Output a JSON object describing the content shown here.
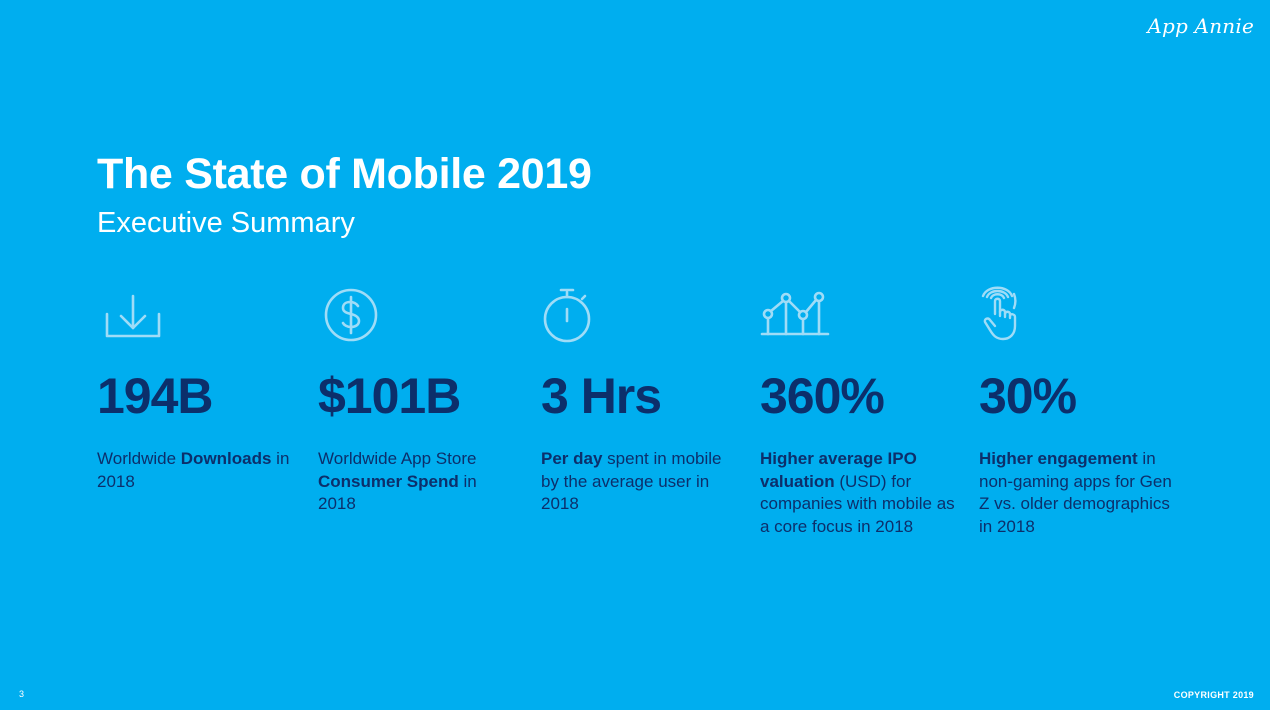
{
  "brand": {
    "logo_text": "App Annie"
  },
  "header": {
    "title": "The State of Mobile 2019",
    "subtitle": "Executive Summary"
  },
  "stats": [
    {
      "icon": "download-icon",
      "value": "194B",
      "desc_parts": [
        {
          "text": "Worldwide ",
          "bold": false
        },
        {
          "text": "Downloads",
          "bold": true
        },
        {
          "text": " in 2018",
          "bold": false
        }
      ]
    },
    {
      "icon": "dollar-coin-icon",
      "value": "$101B",
      "desc_parts": [
        {
          "text": "Worldwide App Store ",
          "bold": false
        },
        {
          "text": "Consumer Spend",
          "bold": true
        },
        {
          "text": " in 2018",
          "bold": false
        }
      ]
    },
    {
      "icon": "stopwatch-icon",
      "value": "3 Hrs",
      "desc_parts": [
        {
          "text": "Per day",
          "bold": true
        },
        {
          "text": " spent in mobile by the average user in 2018",
          "bold": false
        }
      ]
    },
    {
      "icon": "line-chart-icon",
      "value": "360%",
      "desc_parts": [
        {
          "text": "Higher average IPO valuation",
          "bold": true
        },
        {
          "text": " (USD) for companies with mobile as a core focus in 2018",
          "bold": false
        }
      ]
    },
    {
      "icon": "tap-gesture-icon",
      "value": "30%",
      "desc_parts": [
        {
          "text": "Higher engagement",
          "bold": true
        },
        {
          "text": " in non-gaming apps for Gen Z vs. older demographics in 2018",
          "bold": false
        }
      ]
    }
  ],
  "footer": {
    "page_number": "3",
    "copyright": "COPYRIGHT 2019"
  },
  "colors": {
    "background": "#00aeef",
    "value_text": "#0c2f6b",
    "icon_stroke": "#9fdcf7",
    "white": "#ffffff"
  }
}
